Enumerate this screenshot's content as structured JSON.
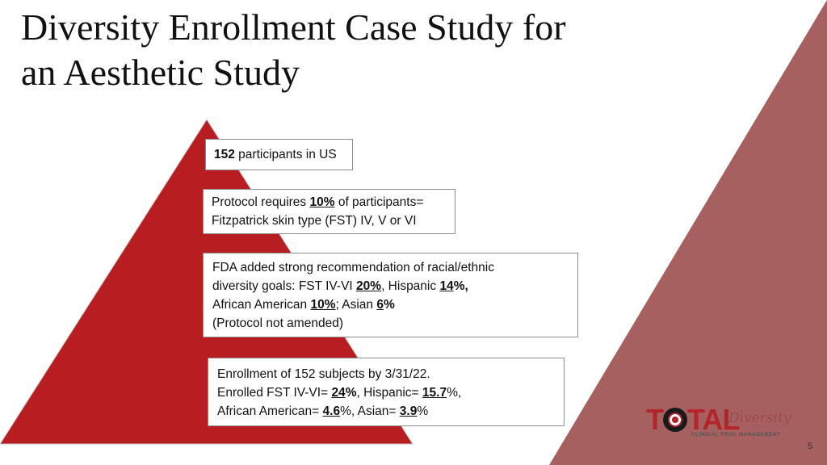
{
  "title": {
    "line1": "Diversity Enrollment Case Study for",
    "line2": "an Aesthetic Study"
  },
  "colors": {
    "triangle_fill": "#b81d22",
    "side_panel": "#a5605f",
    "accent": "#b2262b"
  },
  "boxes": {
    "box1": {
      "b1": "152",
      "t1": " participants in US"
    },
    "box2": {
      "l1a": "Protocol requires ",
      "l1u": "10%",
      "l1b": " of participants=",
      "l2": "Fitzpatrick skin type (FST) IV, V or VI"
    },
    "box3": {
      "l1": "FDA added strong recommendation of racial/ethnic",
      "l2a": "diversity goals: FST IV-VI ",
      "l2u1": "20%",
      "l2b": ", Hispanic ",
      "l2u2": "14",
      "l2c": "%,",
      "l3a": "African American ",
      "l3u1": "10%",
      "l3b": "; Asian ",
      "l3u2": "6",
      "l3c": "%",
      "l4": "(Protocol not amended)"
    },
    "box4": {
      "l1": "Enrollment of 152 subjects by 3/31/22.",
      "l2a": "Enrolled FST IV-VI= ",
      "l2u1": "24",
      "l2b": "%",
      "l2c": ", Hispanic= ",
      "l2u2": "15.7",
      "l2d": "%,",
      "l3a": "African American= ",
      "l3u1": "4.6",
      "l3b": "%, Asian= ",
      "l3u2": "3.9",
      "l3c": "%"
    }
  },
  "logo": {
    "text_left": "T",
    "text_right": "TAL",
    "script": "Diversity",
    "sub": "CLINICAL TRIAL MANAGEMENT"
  },
  "page_number": "5"
}
